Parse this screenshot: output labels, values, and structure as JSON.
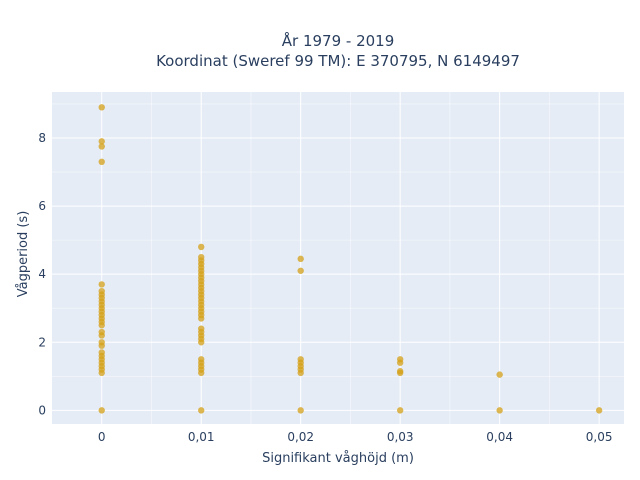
{
  "chart_data": {
    "type": "scatter",
    "title": [
      "År 1979 - 2019",
      "Koordinat (Sweref 99 TM): E 370795, N 6149497"
    ],
    "xlabel": "Signifikant våghöjd (m)",
    "ylabel": "Vågperiod (s)",
    "xlim": [
      -0.005,
      0.0525
    ],
    "ylim": [
      -0.4,
      9.35
    ],
    "xticks": [
      0,
      0.01,
      0.02,
      0.03,
      0.04,
      0.05
    ],
    "xtick_labels": [
      "0",
      "0,01",
      "0,02",
      "0,03",
      "0,04",
      "0,05"
    ],
    "yticks": [
      0,
      2,
      4,
      6,
      8
    ],
    "ytick_labels": [
      "0",
      "2",
      "4",
      "6",
      "8"
    ],
    "grid": true,
    "legend": false,
    "colors": {
      "marker": "#d4a017",
      "plot_bg": "#e5ecf6",
      "grid": "#ffffff"
    },
    "series": [
      {
        "points": [
          [
            0,
            0
          ],
          [
            0,
            1.1
          ],
          [
            0,
            1.2
          ],
          [
            0,
            1.3
          ],
          [
            0,
            1.4
          ],
          [
            0,
            1.5
          ],
          [
            0,
            1.6
          ],
          [
            0,
            1.7
          ],
          [
            0,
            1.9
          ],
          [
            0,
            2.0
          ],
          [
            0,
            2.2
          ],
          [
            0,
            2.3
          ],
          [
            0,
            2.5
          ],
          [
            0,
            2.6
          ],
          [
            0,
            2.7
          ],
          [
            0,
            2.8
          ],
          [
            0,
            2.9
          ],
          [
            0,
            3.0
          ],
          [
            0,
            3.1
          ],
          [
            0,
            3.2
          ],
          [
            0,
            3.3
          ],
          [
            0,
            3.4
          ],
          [
            0,
            3.5
          ],
          [
            0,
            3.7
          ],
          [
            0,
            7.3
          ],
          [
            0,
            7.75
          ],
          [
            0,
            7.9
          ],
          [
            0,
            8.9
          ],
          [
            0.01,
            0
          ],
          [
            0.01,
            1.1
          ],
          [
            0.01,
            1.2
          ],
          [
            0.01,
            1.3
          ],
          [
            0.01,
            1.4
          ],
          [
            0.01,
            1.5
          ],
          [
            0.01,
            2.0
          ],
          [
            0.01,
            2.1
          ],
          [
            0.01,
            2.2
          ],
          [
            0.01,
            2.3
          ],
          [
            0.01,
            2.4
          ],
          [
            0.01,
            2.7
          ],
          [
            0.01,
            2.8
          ],
          [
            0.01,
            2.9
          ],
          [
            0.01,
            3.0
          ],
          [
            0.01,
            3.1
          ],
          [
            0.01,
            3.2
          ],
          [
            0.01,
            3.3
          ],
          [
            0.01,
            3.4
          ],
          [
            0.01,
            3.5
          ],
          [
            0.01,
            3.6
          ],
          [
            0.01,
            3.7
          ],
          [
            0.01,
            3.8
          ],
          [
            0.01,
            3.9
          ],
          [
            0.01,
            4.0
          ],
          [
            0.01,
            4.1
          ],
          [
            0.01,
            4.2
          ],
          [
            0.01,
            4.3
          ],
          [
            0.01,
            4.4
          ],
          [
            0.01,
            4.5
          ],
          [
            0.01,
            4.8
          ],
          [
            0.02,
            0
          ],
          [
            0.02,
            1.1
          ],
          [
            0.02,
            1.2
          ],
          [
            0.02,
            1.3
          ],
          [
            0.02,
            1.4
          ],
          [
            0.02,
            1.5
          ],
          [
            0.02,
            4.1
          ],
          [
            0.02,
            4.45
          ],
          [
            0.03,
            0
          ],
          [
            0.03,
            1.1
          ],
          [
            0.03,
            1.15
          ],
          [
            0.03,
            1.4
          ],
          [
            0.03,
            1.5
          ],
          [
            0.04,
            0
          ],
          [
            0.04,
            1.05
          ],
          [
            0.05,
            0
          ]
        ]
      }
    ]
  }
}
